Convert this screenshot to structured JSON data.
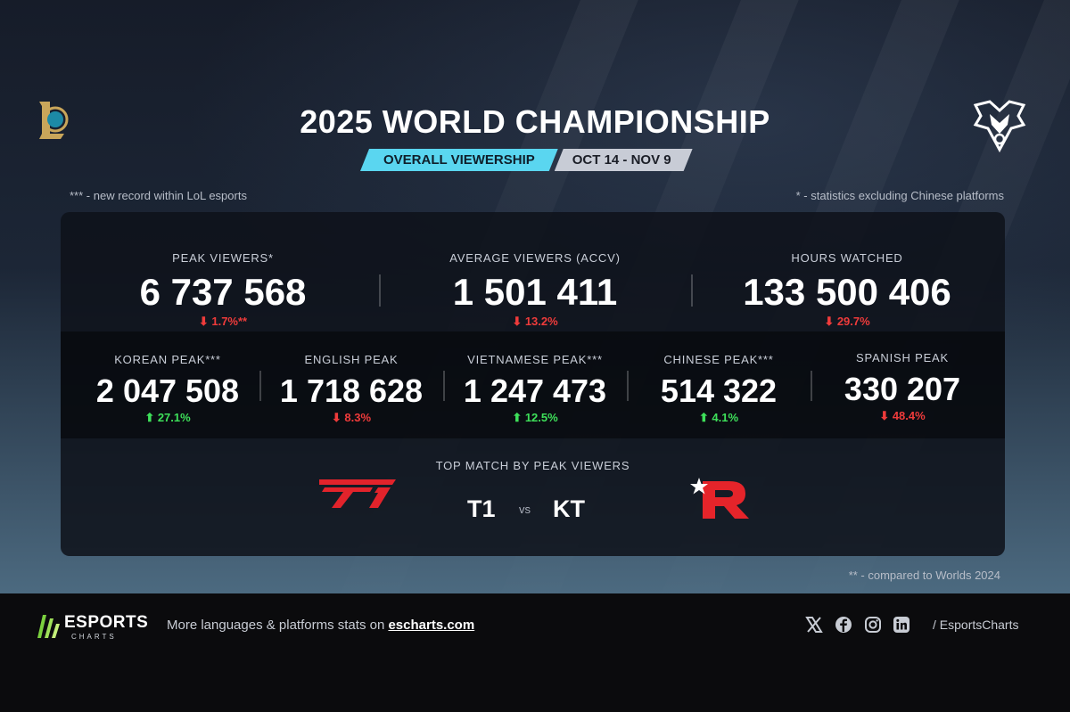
{
  "header": {
    "title": "2025 WORLD CHAMPIONSHIP",
    "tag_primary": "OVERALL VIEWERSHIP",
    "tag_secondary": "OCT 14 - NOV 9"
  },
  "notes": {
    "record": "*** - new record within LoL esports",
    "excluding": "* - statistics excluding Chinese platforms",
    "compared": "** - compared to Worlds 2024"
  },
  "main_stats": [
    {
      "label": "PEAK VIEWERS*",
      "value": "6 737 568",
      "change": "⬇ 1.7%**",
      "direction": "down"
    },
    {
      "label": "AVERAGE VIEWERS (ACCV)",
      "value": "1 501 411",
      "change": "⬇ 13.2%",
      "direction": "down"
    },
    {
      "label": "HOURS WATCHED",
      "value": "133 500 406",
      "change": "⬇ 29.7%",
      "direction": "down"
    }
  ],
  "language_stats": [
    {
      "label": "KOREAN PEAK***",
      "value": "2 047 508",
      "change": "⬆ 27.1%",
      "direction": "up"
    },
    {
      "label": "ENGLISH PEAK",
      "value": "1 718 628",
      "change": "⬇ 8.3%",
      "direction": "down"
    },
    {
      "label": "VIETNAMESE PEAK***",
      "value": "1 247 473",
      "change": "⬆ 12.5%",
      "direction": "up"
    },
    {
      "label": "CHINESE PEAK***",
      "value": "514 322",
      "change": "⬆ 4.1%",
      "direction": "up"
    },
    {
      "label": "SPANISH PEAK",
      "value": "330 207",
      "change": "⬇ 48.4%",
      "direction": "down"
    }
  ],
  "top_match": {
    "label": "TOP MATCH BY PEAK VIEWERS",
    "team1": "T1",
    "vs": "vs",
    "team2": "KT"
  },
  "footer": {
    "brand": "ESPORTS",
    "brand_sub": "CHARTS",
    "promo_text": "More languages & platforms stats on ",
    "promo_link": "escharts.com",
    "handle": "/ EsportsCharts",
    "social_icons": [
      "x-icon",
      "facebook-icon",
      "instagram-icon",
      "linkedin-icon"
    ]
  },
  "colors": {
    "accent_cyan": "#5ad6f0",
    "up": "#3ee05a",
    "down": "#ef3b3b",
    "t1_red": "#e2232b",
    "kt_red": "#e5242a"
  }
}
